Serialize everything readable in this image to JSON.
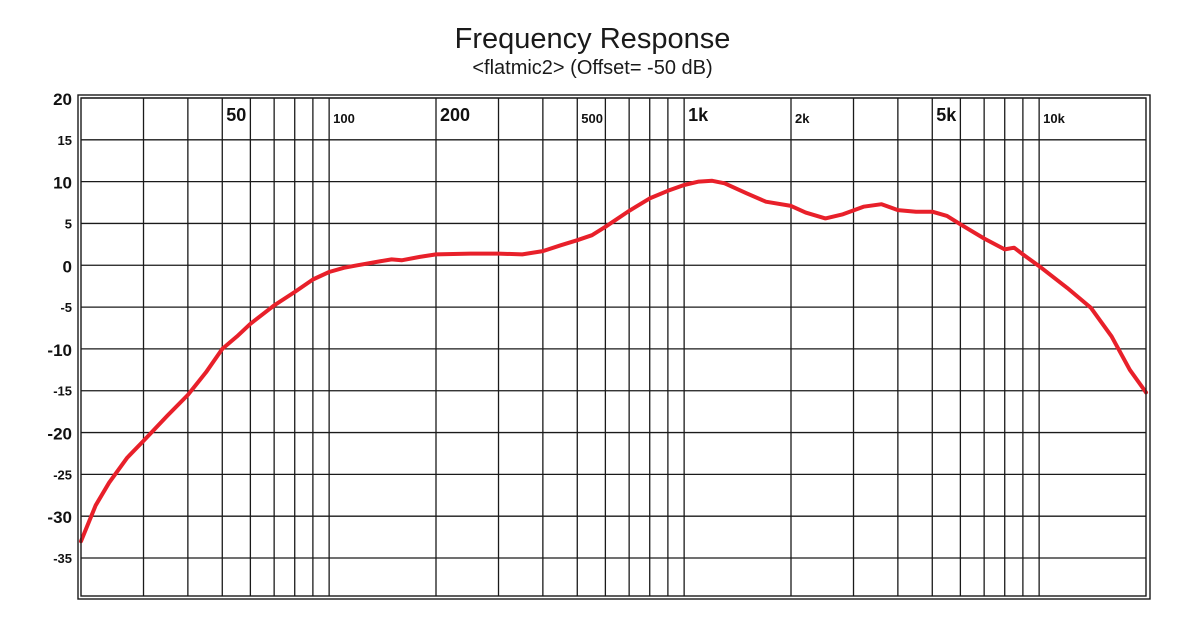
{
  "chart_data": {
    "type": "line",
    "title": "Frequency Response",
    "subtitle": "<flatmic2> (Offset= -50 dB)",
    "xlabel": "",
    "ylabel": "",
    "xscale": "log",
    "xlim": [
      20,
      20000
    ],
    "ylim": [
      -37,
      21
    ],
    "grid": true,
    "x_tick_labels": [
      {
        "value": 50,
        "label": "50",
        "major": true
      },
      {
        "value": 100,
        "label": "100",
        "major": false
      },
      {
        "value": 200,
        "label": "200",
        "major": true
      },
      {
        "value": 500,
        "label": "500",
        "major": false
      },
      {
        "value": 1000,
        "label": "1k",
        "major": true
      },
      {
        "value": 2000,
        "label": "2k",
        "major": false
      },
      {
        "value": 5000,
        "label": "5k",
        "major": true
      },
      {
        "value": 10000,
        "label": "10k",
        "major": false
      }
    ],
    "x_gridlines": [
      30,
      40,
      50,
      60,
      70,
      80,
      90,
      100,
      200,
      300,
      400,
      500,
      600,
      700,
      800,
      900,
      1000,
      2000,
      3000,
      4000,
      5000,
      6000,
      7000,
      8000,
      9000,
      10000
    ],
    "y_ticks": [
      {
        "value": 20,
        "label": "20",
        "major": true
      },
      {
        "value": 15,
        "label": "15",
        "major": false
      },
      {
        "value": 10,
        "label": "10",
        "major": true
      },
      {
        "value": 5,
        "label": "5",
        "major": false
      },
      {
        "value": 0,
        "label": "0",
        "major": true
      },
      {
        "value": -5,
        "label": "-5",
        "major": false
      },
      {
        "value": -10,
        "label": "-10",
        "major": true
      },
      {
        "value": -15,
        "label": "-15",
        "major": false
      },
      {
        "value": -20,
        "label": "-20",
        "major": true
      },
      {
        "value": -25,
        "label": "-25",
        "major": false
      },
      {
        "value": -30,
        "label": "-30",
        "major": true
      },
      {
        "value": -35,
        "label": "-35",
        "major": false
      }
    ],
    "series": [
      {
        "name": "",
        "color": "#e8202a",
        "points": [
          [
            20,
            -33
          ],
          [
            22,
            -28.7
          ],
          [
            24,
            -26
          ],
          [
            27,
            -23
          ],
          [
            30,
            -21
          ],
          [
            35,
            -18
          ],
          [
            40,
            -15.5
          ],
          [
            45,
            -12.8
          ],
          [
            50,
            -10
          ],
          [
            55,
            -8.5
          ],
          [
            60,
            -7
          ],
          [
            70,
            -4.8
          ],
          [
            80,
            -3.2
          ],
          [
            90,
            -1.7
          ],
          [
            100,
            -0.8
          ],
          [
            110,
            -0.3
          ],
          [
            120,
            0
          ],
          [
            140,
            0.5
          ],
          [
            150,
            0.7
          ],
          [
            160,
            0.6
          ],
          [
            180,
            1.0
          ],
          [
            200,
            1.3
          ],
          [
            250,
            1.4
          ],
          [
            300,
            1.4
          ],
          [
            350,
            1.3
          ],
          [
            400,
            1.7
          ],
          [
            450,
            2.4
          ],
          [
            500,
            3.0
          ],
          [
            550,
            3.6
          ],
          [
            600,
            4.6
          ],
          [
            700,
            6.5
          ],
          [
            800,
            8.0
          ],
          [
            900,
            8.9
          ],
          [
            1000,
            9.6
          ],
          [
            1100,
            10.0
          ],
          [
            1200,
            10.1
          ],
          [
            1300,
            9.8
          ],
          [
            1500,
            8.6
          ],
          [
            1700,
            7.6
          ],
          [
            2000,
            7.1
          ],
          [
            2200,
            6.3
          ],
          [
            2500,
            5.6
          ],
          [
            2800,
            6.1
          ],
          [
            3200,
            7.0
          ],
          [
            3600,
            7.3
          ],
          [
            4000,
            6.6
          ],
          [
            4500,
            6.4
          ],
          [
            5000,
            6.4
          ],
          [
            5500,
            5.9
          ],
          [
            6000,
            4.9
          ],
          [
            7000,
            3.2
          ],
          [
            8000,
            1.9
          ],
          [
            8500,
            2.1
          ],
          [
            9000,
            1.3
          ],
          [
            10000,
            -0.1
          ],
          [
            12000,
            -2.7
          ],
          [
            14000,
            -5.1
          ],
          [
            16000,
            -8.5
          ],
          [
            18000,
            -12.5
          ],
          [
            20000,
            -15.2
          ]
        ]
      }
    ]
  }
}
